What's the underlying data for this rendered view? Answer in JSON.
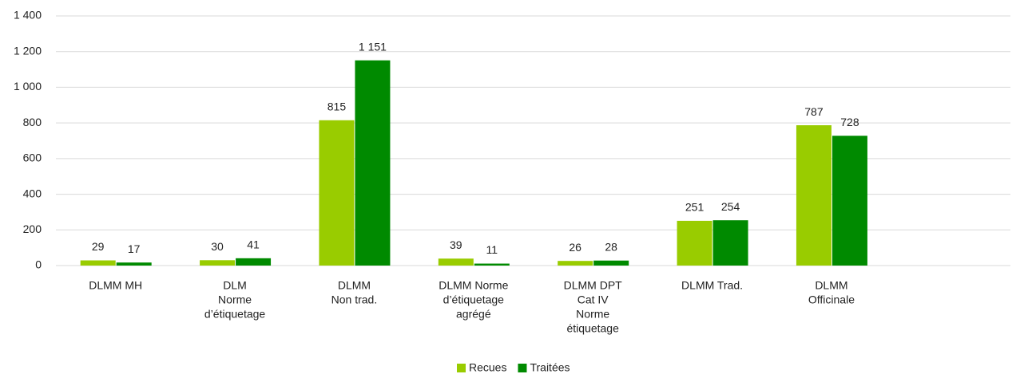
{
  "chart_data": {
    "type": "bar",
    "categories": [
      [
        "DLMM MH"
      ],
      [
        "DLM",
        "Norme",
        "d’étiquetage"
      ],
      [
        "DLMM",
        "Non trad."
      ],
      [
        "DLMM Norme",
        "d’étiquetage",
        "agrégé"
      ],
      [
        "DLMM DPT",
        "Cat IV",
        "Norme",
        "étiquetage"
      ],
      [
        "DLMM Trad."
      ],
      [
        "DLMM",
        "Officinale"
      ],
      null
    ],
    "series": [
      {
        "name": "Recues",
        "color": "#99cc00",
        "values": [
          29,
          30,
          815,
          39,
          26,
          251,
          787,
          null
        ],
        "value_labels": [
          "29",
          "30",
          "815",
          "39",
          "26",
          "251",
          "787",
          null
        ]
      },
      {
        "name": "Traitées",
        "color": "#008a00",
        "values": [
          17,
          41,
          1151,
          11,
          28,
          254,
          728,
          null
        ],
        "value_labels": [
          "17",
          "41",
          "1 151",
          "11",
          "28",
          "254",
          "728",
          null
        ]
      }
    ],
    "ylim": [
      0,
      1400
    ],
    "yticks": [
      0,
      200,
      400,
      600,
      800,
      {
        "value": 1000,
        "label": "1 000"
      },
      {
        "value": 1200,
        "label": "1 200"
      },
      {
        "value": 1400,
        "label": "1 400"
      }
    ],
    "grid": true,
    "legend": "bottom"
  }
}
